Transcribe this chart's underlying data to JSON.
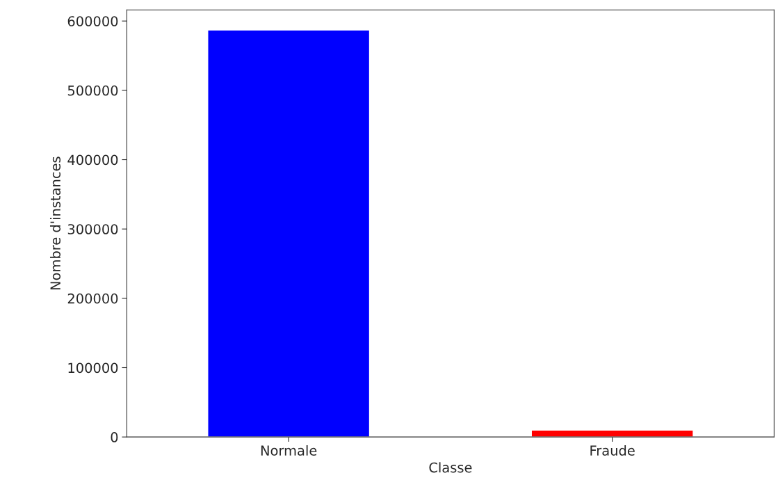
{
  "chart_data": {
    "type": "bar",
    "categories": [
      "Normale",
      "Fraude"
    ],
    "values": [
      587000,
      10000
    ],
    "colors": [
      "#0000ff",
      "#ff0000"
    ],
    "xlabel": "Classe",
    "ylabel": "Nombre d'instances",
    "ylim": [
      0,
      616000
    ],
    "yticks": [
      0,
      100000,
      200000,
      300000,
      400000,
      500000,
      600000
    ],
    "grid": false,
    "legend": false
  }
}
